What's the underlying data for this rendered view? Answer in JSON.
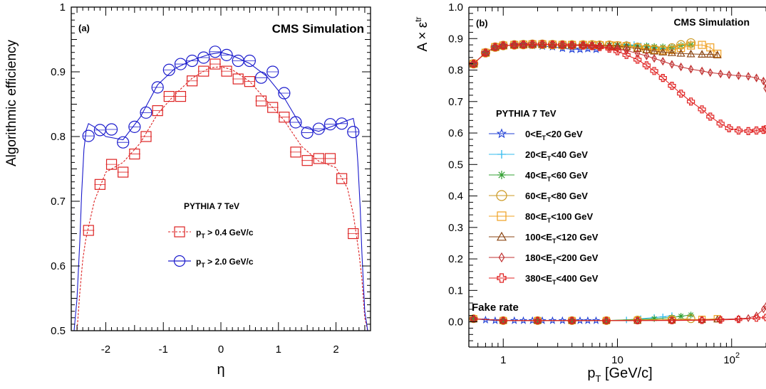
{
  "chart_data": [
    {
      "panel": "(a)",
      "type": "line",
      "header": "CMS Simulation",
      "xlabel": "η",
      "ylabel": "Algorithmic efficiency",
      "xlim": [
        -2.6,
        2.6
      ],
      "ylim": [
        0.5,
        1.0
      ],
      "xticks": [
        -2,
        -1,
        0,
        1,
        2
      ],
      "xtick_labels": [
        "-2",
        "-1",
        "0",
        "1",
        "2"
      ],
      "yticks": [
        0.5,
        0.6,
        0.7,
        0.8,
        0.9,
        1.0
      ],
      "ytick_labels": [
        "0.5",
        "0.6",
        "0.7",
        "0.8",
        "0.9",
        "1"
      ],
      "legend_title": "PYTHIA 7 TeV",
      "legend": [
        {
          "sym": "p",
          "sub": "T",
          "rest": " > 0.4 GeV/c"
        },
        {
          "sym": "p",
          "sub": "T",
          "rest": " > 2.0 GeV/c"
        }
      ],
      "series": [
        {
          "marker": "square",
          "color": "#dd2222",
          "dashed": true,
          "x": [
            -2.3,
            -2.1,
            -1.9,
            -1.7,
            -1.5,
            -1.3,
            -1.1,
            -0.9,
            -0.7,
            -0.5,
            -0.3,
            -0.1,
            0.1,
            0.3,
            0.5,
            0.7,
            0.9,
            1.1,
            1.3,
            1.5,
            1.7,
            1.9,
            2.1,
            2.3
          ],
          "y": [
            0.655,
            0.726,
            0.757,
            0.745,
            0.773,
            0.8,
            0.84,
            0.862,
            0.862,
            0.886,
            0.901,
            0.912,
            0.901,
            0.889,
            0.885,
            0.855,
            0.845,
            0.83,
            0.776,
            0.763,
            0.766,
            0.766,
            0.735,
            0.65
          ],
          "curve_x": [
            -2.6,
            -2.55,
            -2.5,
            -2.45,
            -2.4,
            -2.35,
            -2.3,
            -2.2,
            -2.0,
            -1.7,
            -1.4,
            -1.1,
            -0.8,
            -0.5,
            -0.2,
            0.0,
            0.2,
            0.5,
            0.8,
            1.1,
            1.4,
            1.7,
            2.0,
            2.2,
            2.3,
            2.35,
            2.4,
            2.45,
            2.5,
            2.55,
            2.6
          ],
          "curve_y": [
            0.43,
            0.46,
            0.5,
            0.56,
            0.61,
            0.64,
            0.66,
            0.7,
            0.745,
            0.76,
            0.79,
            0.835,
            0.865,
            0.89,
            0.906,
            0.908,
            0.903,
            0.885,
            0.855,
            0.825,
            0.785,
            0.762,
            0.752,
            0.72,
            0.68,
            0.65,
            0.62,
            0.58,
            0.52,
            0.47,
            0.43
          ]
        },
        {
          "marker": "circle",
          "color": "#1a1acc",
          "dashed": false,
          "x": [
            -2.3,
            -2.1,
            -1.9,
            -1.7,
            -1.5,
            -1.3,
            -1.1,
            -0.9,
            -0.7,
            -0.5,
            -0.3,
            -0.1,
            0.1,
            0.3,
            0.5,
            0.7,
            0.9,
            1.1,
            1.3,
            1.5,
            1.7,
            1.9,
            2.1,
            2.3
          ],
          "y": [
            0.801,
            0.81,
            0.811,
            0.791,
            0.815,
            0.837,
            0.876,
            0.903,
            0.912,
            0.917,
            0.922,
            0.931,
            0.926,
            0.917,
            0.917,
            0.891,
            0.9,
            0.867,
            0.822,
            0.806,
            0.812,
            0.819,
            0.82,
            0.807
          ],
          "curve_x": [
            -2.6,
            -2.55,
            -2.5,
            -2.45,
            -2.42,
            -2.38,
            -2.34,
            -2.3,
            -2.2,
            -2.0,
            -1.7,
            -1.4,
            -1.1,
            -0.8,
            -0.5,
            -0.2,
            0.0,
            0.2,
            0.5,
            0.8,
            1.1,
            1.4,
            1.7,
            2.0,
            2.2,
            2.3,
            2.34,
            2.38,
            2.42,
            2.45,
            2.5,
            2.55,
            2.6
          ],
          "curve_y": [
            0.43,
            0.48,
            0.55,
            0.64,
            0.71,
            0.78,
            0.81,
            0.82,
            0.815,
            0.8,
            0.795,
            0.83,
            0.88,
            0.905,
            0.918,
            0.927,
            0.93,
            0.925,
            0.913,
            0.893,
            0.86,
            0.815,
            0.808,
            0.818,
            0.825,
            0.828,
            0.81,
            0.76,
            0.69,
            0.62,
            0.53,
            0.47,
            0.43
          ]
        }
      ]
    },
    {
      "panel": "(b)",
      "type": "line",
      "header": "CMS Simulation",
      "xlabel": {
        "sym": "p",
        "sub": "T",
        "rest": " [GeV/c]"
      },
      "ylabel": {
        "main": "A × ε",
        "sup": "tr"
      },
      "xscale": "log",
      "xlim": [
        0.5,
        200
      ],
      "ylim": [
        -0.08,
        1.0
      ],
      "yticks": [
        0.0,
        0.1,
        0.2,
        0.3,
        0.4,
        0.5,
        0.6,
        0.7,
        0.8,
        0.9,
        1.0
      ],
      "ytick_labels": [
        "0.0",
        "0.1",
        "0.2",
        "0.3",
        "0.4",
        "0.5",
        "0.6",
        "0.7",
        "0.8",
        "0.9",
        "1.0"
      ],
      "xticks": [
        1,
        10,
        100
      ],
      "xtick_labels": [
        {
          "main": "1"
        },
        {
          "main": "10"
        },
        {
          "main": "10",
          "sup": "2"
        }
      ],
      "annotation": "Fake rate",
      "legend_title": "PYTHIA 7 TeV",
      "legend": [
        {
          "pre": "0<E",
          "sub": "T",
          "post": "<20 GeV"
        },
        {
          "pre": "20<E",
          "sub": "T",
          "post": "<40 GeV"
        },
        {
          "pre": "40<E",
          "sub": "T",
          "post": "<60 GeV"
        },
        {
          "pre": "60<E",
          "sub": "T",
          "post": "<80 GeV"
        },
        {
          "pre": "80<E",
          "sub": "T",
          "post": "<100 GeV"
        },
        {
          "pre": "100<E",
          "sub": "T",
          "post": "<120 GeV"
        },
        {
          "pre": "180<E",
          "sub": "T",
          "post": "<200 GeV"
        },
        {
          "pre": "380<E",
          "sub": "T",
          "post": "<400 GeV"
        }
      ],
      "series": [
        {
          "marker": "star",
          "color": "#1f3fd6",
          "x": [
            0.55,
            0.7,
            0.85,
            1.0,
            1.25,
            1.5,
            1.8,
            2.2,
            2.7,
            3.3,
            4.0,
            4.7,
            5.5,
            6.5
          ],
          "y": [
            0.82,
            0.855,
            0.873,
            0.878,
            0.879,
            0.88,
            0.878,
            0.876,
            0.874,
            0.869,
            0.866,
            0.866,
            0.868,
            0.866
          ],
          "fake_x": [
            0.55,
            0.7,
            0.85,
            1.0,
            1.25,
            1.5,
            1.8,
            2.2,
            2.7,
            3.3,
            4.0,
            4.7,
            5.5,
            6.5
          ],
          "fake_y": [
            0.01,
            0.006,
            0.004,
            0.004,
            0.004,
            0.004,
            0.004,
            0.004,
            0.004,
            0.004,
            0.004,
            0.004,
            0.004,
            0.004
          ]
        },
        {
          "marker": "plus",
          "color": "#33bbee",
          "x": [
            0.55,
            0.7,
            0.85,
            1.0,
            1.25,
            1.5,
            1.8,
            2.2,
            2.7,
            3.3,
            4.0,
            5.0,
            6.0,
            7.0,
            8.5,
            10.0,
            12.0,
            14.0,
            16.0,
            18.5,
            21.0,
            25.0,
            30.0
          ],
          "y": [
            0.82,
            0.855,
            0.873,
            0.878,
            0.88,
            0.881,
            0.882,
            0.882,
            0.881,
            0.88,
            0.88,
            0.88,
            0.88,
            0.879,
            0.879,
            0.88,
            0.881,
            0.88,
            0.876,
            0.874,
            0.872,
            0.868,
            0.868
          ],
          "fake_x": [
            0.55,
            1.0,
            2.0,
            4.0,
            8.0,
            12.0,
            16.0,
            21.0,
            25.0,
            30.0
          ],
          "fake_y": [
            0.01,
            0.004,
            0.004,
            0.004,
            0.004,
            0.006,
            0.01,
            0.014,
            0.016,
            0.02
          ]
        },
        {
          "marker": "asterisk",
          "color": "#33a033",
          "x": [
            0.55,
            0.7,
            0.85,
            1.0,
            1.25,
            1.5,
            1.8,
            2.2,
            2.7,
            3.3,
            4.0,
            5.0,
            6.0,
            7.0,
            8.5,
            10.0,
            12.0,
            15.0,
            18.0,
            21.0,
            25.0,
            30.0,
            36.0,
            44.0
          ],
          "y": [
            0.82,
            0.855,
            0.873,
            0.878,
            0.88,
            0.881,
            0.882,
            0.882,
            0.881,
            0.88,
            0.88,
            0.88,
            0.88,
            0.879,
            0.879,
            0.879,
            0.878,
            0.876,
            0.876,
            0.874,
            0.873,
            0.872,
            0.878,
            0.88
          ],
          "fake_x": [
            0.55,
            1.0,
            2.0,
            4.0,
            8.0,
            15.0,
            21.0,
            30.0,
            36.0,
            44.0
          ],
          "fake_y": [
            0.01,
            0.004,
            0.004,
            0.004,
            0.004,
            0.008,
            0.01,
            0.014,
            0.018,
            0.022
          ]
        },
        {
          "marker": "circle",
          "color": "#cc9922",
          "x": [
            0.55,
            0.7,
            0.85,
            1.0,
            1.25,
            1.5,
            1.8,
            2.2,
            2.7,
            3.3,
            4.0,
            5.0,
            6.0,
            7.0,
            8.5,
            10.0,
            12.0,
            15.0,
            18.0,
            21.0,
            25.0,
            30.0,
            36.0,
            44.0
          ],
          "y": [
            0.82,
            0.855,
            0.873,
            0.878,
            0.88,
            0.881,
            0.882,
            0.882,
            0.881,
            0.88,
            0.88,
            0.88,
            0.88,
            0.879,
            0.879,
            0.877,
            0.876,
            0.872,
            0.868,
            0.866,
            0.864,
            0.87,
            0.88,
            0.886
          ],
          "fake_x": [
            0.55,
            1.0,
            2.0,
            4.0,
            8.0,
            15.0,
            30.0,
            44.0
          ],
          "fake_y": [
            0.01,
            0.004,
            0.004,
            0.004,
            0.004,
            0.006,
            0.008,
            0.01
          ]
        },
        {
          "marker": "square",
          "color": "#f0a020",
          "x": [
            0.55,
            0.7,
            0.85,
            1.0,
            1.25,
            1.5,
            1.8,
            2.2,
            2.7,
            3.3,
            4.0,
            5.0,
            6.0,
            7.0,
            8.5,
            10.0,
            12.0,
            15.0,
            18.0,
            21.0,
            25.0,
            30.0,
            36.0,
            44.0,
            55.0,
            65.0,
            75.0
          ],
          "y": [
            0.82,
            0.855,
            0.873,
            0.878,
            0.88,
            0.881,
            0.882,
            0.882,
            0.881,
            0.88,
            0.88,
            0.88,
            0.88,
            0.879,
            0.879,
            0.878,
            0.876,
            0.872,
            0.866,
            0.864,
            0.862,
            0.864,
            0.87,
            0.878,
            0.88,
            0.872,
            0.852
          ],
          "fake_x": [
            0.55,
            1.0,
            2.0,
            4.0,
            8.0,
            15.0,
            30.0,
            55.0,
            75.0
          ],
          "fake_y": [
            0.01,
            0.004,
            0.004,
            0.004,
            0.004,
            0.005,
            0.006,
            0.008,
            0.01
          ]
        },
        {
          "marker": "triangle",
          "color": "#8b4513",
          "x": [
            0.55,
            0.7,
            0.85,
            1.0,
            1.25,
            1.5,
            1.8,
            2.2,
            2.7,
            3.3,
            4.0,
            5.0,
            6.0,
            7.0,
            8.5,
            10.0,
            12.0,
            15.0,
            18.0,
            21.0,
            25.0,
            30.0,
            36.0,
            44.0,
            55.0,
            65.0,
            75.0
          ],
          "y": [
            0.82,
            0.855,
            0.873,
            0.878,
            0.88,
            0.881,
            0.882,
            0.882,
            0.881,
            0.88,
            0.88,
            0.88,
            0.88,
            0.879,
            0.878,
            0.876,
            0.873,
            0.868,
            0.864,
            0.86,
            0.857,
            0.855,
            0.853,
            0.851,
            0.85,
            0.85,
            0.848
          ],
          "fake_x": [
            0.55,
            1.0,
            2.0,
            4.0,
            8.0,
            15.0,
            30.0,
            55.0,
            75.0
          ],
          "fake_y": [
            0.01,
            0.004,
            0.004,
            0.004,
            0.004,
            0.004,
            0.005,
            0.006,
            0.008
          ]
        },
        {
          "marker": "diamond",
          "color": "#c03030",
          "x": [
            0.55,
            0.7,
            0.85,
            1.0,
            1.25,
            1.5,
            1.8,
            2.2,
            2.7,
            3.3,
            4.0,
            5.0,
            6.0,
            7.0,
            8.5,
            10.0,
            12.0,
            15.0,
            18.0,
            21.0,
            25.0,
            30.0,
            36.0,
            44.0,
            55.0,
            65.0,
            80.0,
            95.0,
            115.0,
            140.0,
            165.0,
            190.0,
            200.0
          ],
          "y": [
            0.82,
            0.855,
            0.873,
            0.878,
            0.88,
            0.881,
            0.882,
            0.882,
            0.881,
            0.88,
            0.879,
            0.878,
            0.877,
            0.875,
            0.872,
            0.868,
            0.862,
            0.853,
            0.845,
            0.837,
            0.828,
            0.818,
            0.81,
            0.803,
            0.797,
            0.792,
            0.788,
            0.785,
            0.782,
            0.78,
            0.775,
            0.765,
            0.742
          ],
          "fake_x": [
            0.55,
            1.0,
            2.0,
            4.0,
            8.0,
            15.0,
            30.0,
            55.0,
            80.0,
            115.0,
            140.0,
            165.0,
            190.0,
            200.0
          ],
          "fake_y": [
            0.01,
            0.004,
            0.004,
            0.004,
            0.004,
            0.004,
            0.005,
            0.006,
            0.008,
            0.01,
            0.012,
            0.02,
            0.04,
            0.05
          ]
        },
        {
          "marker": "cross",
          "color": "#e02020",
          "x": [
            0.55,
            0.7,
            0.85,
            1.0,
            1.25,
            1.5,
            1.8,
            2.2,
            2.7,
            3.3,
            4.0,
            5.0,
            6.0,
            7.0,
            8.5,
            10.0,
            12.0,
            15.0,
            18.0,
            21.0,
            25.0,
            30.0,
            36.0,
            44.0,
            55.0,
            65.0,
            80.0,
            95.0,
            115.0,
            140.0,
            165.0,
            190.0,
            200.0
          ],
          "y": [
            0.82,
            0.855,
            0.873,
            0.878,
            0.88,
            0.881,
            0.882,
            0.882,
            0.881,
            0.88,
            0.879,
            0.878,
            0.876,
            0.873,
            0.868,
            0.86,
            0.848,
            0.833,
            0.815,
            0.797,
            0.775,
            0.75,
            0.725,
            0.7,
            0.675,
            0.652,
            0.63,
            0.615,
            0.608,
            0.606,
            0.608,
            0.61,
            0.612
          ],
          "fake_x": [
            0.55,
            1.0,
            2.0,
            4.0,
            8.0,
            15.0,
            30.0,
            55.0,
            80.0,
            115.0,
            165.0,
            200.0
          ],
          "fake_y": [
            0.01,
            0.004,
            0.004,
            0.004,
            0.004,
            0.004,
            0.004,
            0.005,
            0.006,
            0.008,
            0.012,
            0.014
          ]
        }
      ]
    }
  ]
}
